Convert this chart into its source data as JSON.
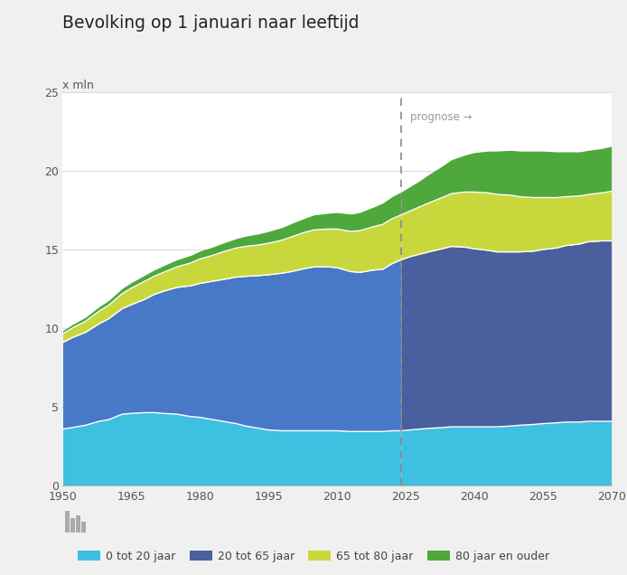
{
  "title": "Bevolking op 1 januari naar leeftijd",
  "ylabel": "x mln",
  "ylim": [
    0,
    25
  ],
  "yticks": [
    0,
    5,
    10,
    15,
    20,
    25
  ],
  "forecast_year": 2024,
  "forecast_label": "prognose →",
  "bg_color": "#f0f0f0",
  "plot_bg_color": "#ffffff",
  "colors": {
    "0_20": "#3ec0e0",
    "20_65_hist": "#4878c8",
    "20_65_fore": "#4a5f9e",
    "65_80": "#c8d83c",
    "80_plus": "#4ea83c"
  },
  "legend_colors": {
    "0_20": "#3ec0e0",
    "20_65": "#4a5f9e",
    "65_80": "#c8d83c",
    "80_plus": "#4ea83c"
  },
  "legend_labels": [
    "0 tot 20 jaar",
    "20 tot 65 jaar",
    "65 tot 80 jaar",
    "80 jaar en ouder"
  ],
  "years": [
    1950,
    1952,
    1955,
    1958,
    1960,
    1963,
    1965,
    1968,
    1970,
    1972,
    1975,
    1978,
    1980,
    1983,
    1985,
    1988,
    1990,
    1993,
    1995,
    1998,
    2000,
    2003,
    2005,
    2008,
    2010,
    2013,
    2015,
    2018,
    2020,
    2022,
    2024,
    2026,
    2028,
    2030,
    2033,
    2035,
    2038,
    2040,
    2043,
    2045,
    2048,
    2050,
    2053,
    2055,
    2058,
    2060,
    2063,
    2065,
    2068,
    2070
  ],
  "data_0_20": [
    3.6,
    3.7,
    3.85,
    4.1,
    4.2,
    4.55,
    4.6,
    4.65,
    4.65,
    4.6,
    4.55,
    4.4,
    4.35,
    4.2,
    4.1,
    3.95,
    3.8,
    3.65,
    3.55,
    3.5,
    3.5,
    3.5,
    3.5,
    3.5,
    3.5,
    3.45,
    3.45,
    3.45,
    3.45,
    3.5,
    3.5,
    3.55,
    3.6,
    3.65,
    3.7,
    3.75,
    3.75,
    3.75,
    3.75,
    3.75,
    3.8,
    3.85,
    3.9,
    3.95,
    4.0,
    4.05,
    4.05,
    4.1,
    4.1,
    4.1
  ],
  "data_20_65": [
    5.5,
    5.7,
    5.9,
    6.2,
    6.4,
    6.7,
    6.9,
    7.2,
    7.5,
    7.75,
    8.05,
    8.3,
    8.5,
    8.8,
    9.0,
    9.3,
    9.5,
    9.7,
    9.85,
    10.0,
    10.1,
    10.3,
    10.4,
    10.4,
    10.35,
    10.15,
    10.1,
    10.25,
    10.3,
    10.6,
    10.85,
    11.0,
    11.1,
    11.2,
    11.35,
    11.45,
    11.4,
    11.3,
    11.2,
    11.1,
    11.05,
    11.0,
    11.0,
    11.05,
    11.1,
    11.2,
    11.3,
    11.4,
    11.45,
    11.45
  ],
  "data_65_80": [
    0.55,
    0.6,
    0.7,
    0.8,
    0.85,
    0.95,
    1.05,
    1.15,
    1.15,
    1.2,
    1.3,
    1.45,
    1.55,
    1.65,
    1.75,
    1.85,
    1.9,
    1.95,
    2.0,
    2.1,
    2.2,
    2.3,
    2.35,
    2.4,
    2.45,
    2.55,
    2.65,
    2.75,
    2.85,
    2.85,
    2.85,
    2.9,
    3.0,
    3.1,
    3.25,
    3.35,
    3.5,
    3.6,
    3.65,
    3.65,
    3.6,
    3.5,
    3.4,
    3.3,
    3.2,
    3.1,
    3.05,
    3.0,
    3.05,
    3.15
  ],
  "data_80_plus": [
    0.2,
    0.22,
    0.25,
    0.28,
    0.3,
    0.33,
    0.35,
    0.38,
    0.4,
    0.42,
    0.45,
    0.48,
    0.5,
    0.53,
    0.55,
    0.6,
    0.65,
    0.7,
    0.75,
    0.8,
    0.85,
    0.9,
    0.95,
    1.0,
    1.05,
    1.1,
    1.15,
    1.25,
    1.35,
    1.4,
    1.45,
    1.55,
    1.65,
    1.8,
    2.0,
    2.15,
    2.35,
    2.5,
    2.65,
    2.75,
    2.85,
    2.9,
    2.95,
    2.95,
    2.9,
    2.85,
    2.8,
    2.8,
    2.82,
    2.85
  ],
  "xticks": [
    1950,
    1965,
    1980,
    1995,
    2010,
    2025,
    2040,
    2055,
    2070
  ],
  "grid_color": "#d8d8d8",
  "separator_color": "#ffffff"
}
